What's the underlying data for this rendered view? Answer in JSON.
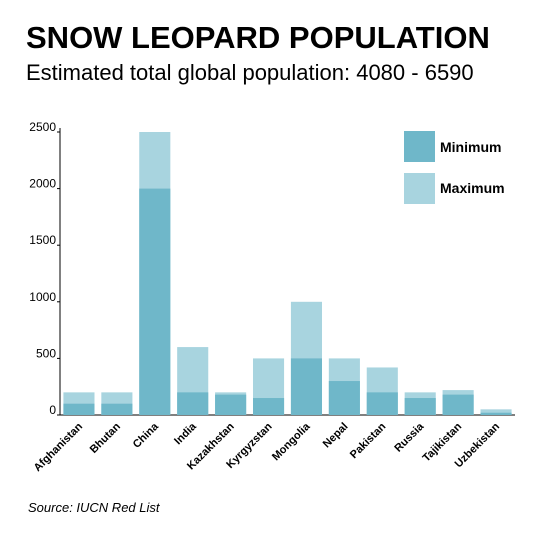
{
  "header": {
    "title": "SNOW LEOPARD POPULATION",
    "subtitle": "Estimated total global population: 4080 - 6590"
  },
  "footer": {
    "source": "Source: IUCN Red List"
  },
  "chart_data": {
    "type": "bar",
    "categories": [
      "Afghanistan",
      "Bhutan",
      "China",
      "India",
      "Kazakhstan",
      "Kyrgyzstan",
      "Mongolia",
      "Nepal",
      "Pakistan",
      "Russia",
      "Tajikistan",
      "Uzbekistan"
    ],
    "series": [
      {
        "name": "Minimum",
        "values": [
          100,
          100,
          2000,
          200,
          180,
          150,
          500,
          300,
          200,
          150,
          180,
          20
        ],
        "color": "#6fb7c9"
      },
      {
        "name": "Maximum",
        "values": [
          200,
          200,
          2500,
          600,
          200,
          500,
          1000,
          500,
          420,
          200,
          220,
          50
        ],
        "color": "#a8d4df"
      }
    ],
    "ylim": [
      0,
      2500
    ],
    "yticks": [
      "0",
      "500",
      "1000",
      "1500",
      "2000",
      "2500"
    ],
    "legend_position": "top-right",
    "grid": false
  }
}
